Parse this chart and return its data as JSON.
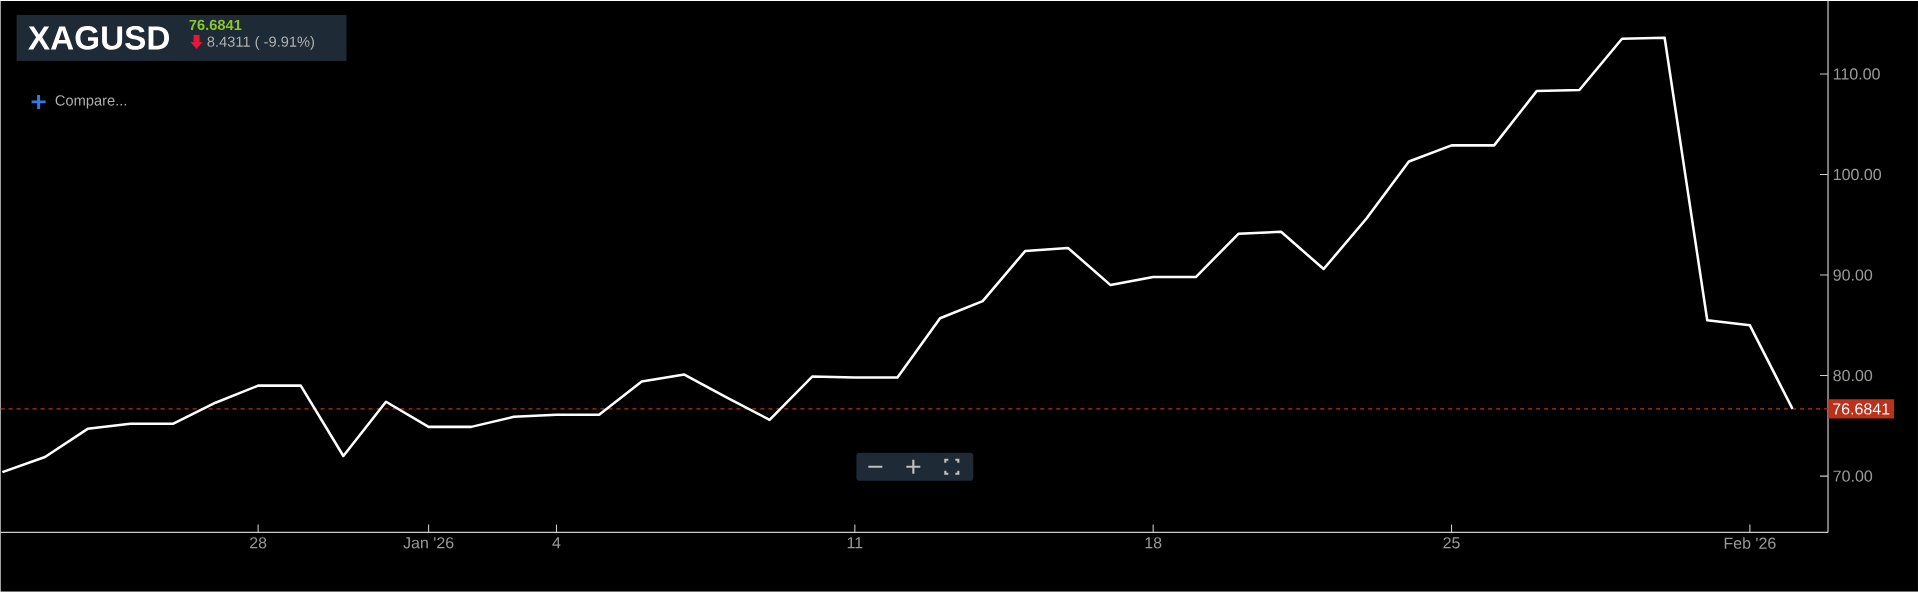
{
  "chart_data": {
    "type": "line",
    "title": "XAGUSD",
    "subtitle": "76.6841",
    "annotations": [
      "8.4311 ( -9.91%)",
      "Compare..."
    ],
    "x": [
      "2025-12-22",
      "2025-12-23",
      "2025-12-24",
      "2025-12-25",
      "2025-12-26",
      "2025-12-27",
      "2025-12-28",
      "2025-12-29",
      "2025-12-30",
      "2025-12-31",
      "2026-01-01",
      "2026-01-02",
      "2026-01-03",
      "2026-01-04",
      "2026-01-05",
      "2026-01-06",
      "2026-01-07",
      "2026-01-08",
      "2026-01-09",
      "2026-01-10",
      "2026-01-11",
      "2026-01-12",
      "2026-01-13",
      "2026-01-14",
      "2026-01-15",
      "2026-01-16",
      "2026-01-17",
      "2026-01-18",
      "2026-01-19",
      "2026-01-20",
      "2026-01-21",
      "2026-01-22",
      "2026-01-23",
      "2026-01-24",
      "2026-01-25",
      "2026-01-26",
      "2026-01-27",
      "2026-01-28",
      "2026-01-29",
      "2026-01-30",
      "2026-01-31",
      "2026-02-01",
      "2026-02-02"
    ],
    "series": [
      {
        "color": "#ffffff",
        "line_style": "solid",
        "values": [
          70.4,
          71.9,
          74.7,
          75.2,
          75.2,
          77.3,
          79.0,
          79.0,
          72.0,
          77.4,
          74.9,
          74.9,
          75.9,
          76.1,
          76.1,
          79.4,
          80.1,
          77.8,
          75.6,
          79.9,
          79.8,
          79.8,
          85.7,
          87.4,
          92.4,
          92.7,
          89.0,
          89.8,
          89.8,
          94.1,
          94.3,
          90.6,
          95.6,
          101.3,
          102.9,
          102.9,
          108.3,
          108.4,
          113.5,
          113.6,
          85.5,
          85.0,
          76.6841
        ]
      }
    ],
    "xlim": [
      "2025-12-21T23:00",
      "2026-02-02T20:00"
    ],
    "ylim": [
      64.4,
      117.3
    ],
    "xticks": [
      {
        "value": "2025-12-28",
        "label": "28"
      },
      {
        "value": "2026-01-01",
        "label": "Jan '26"
      },
      {
        "value": "2026-01-04",
        "label": "4"
      },
      {
        "value": "2026-01-11",
        "label": "11"
      },
      {
        "value": "2026-01-18",
        "label": "18"
      },
      {
        "value": "2026-01-25",
        "label": "25"
      },
      {
        "value": "2026-02-01",
        "label": "Feb '26"
      }
    ],
    "yticks": [
      {
        "value": 70,
        "label": "70.00"
      },
      {
        "value": 80,
        "label": "80.00"
      },
      {
        "value": 90,
        "label": "90.00"
      },
      {
        "value": 100,
        "label": "100.00"
      },
      {
        "value": 110,
        "label": "110.00"
      }
    ],
    "ref_lines": [
      {
        "axis": "y",
        "value": 76.6841,
        "label": "76.6841",
        "color": "#b8321c",
        "line_style": "dashed"
      }
    ]
  }
}
